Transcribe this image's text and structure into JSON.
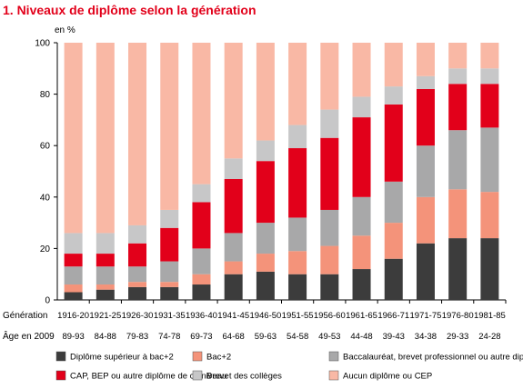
{
  "chart_data": {
    "type": "bar",
    "stacked": true,
    "title": "1. Niveaux de diplôme selon la génération",
    "ylabel": "en %",
    "ylim": [
      0,
      100
    ],
    "yticks": [
      0,
      20,
      40,
      60,
      80,
      100
    ],
    "row_labels": [
      "Génération",
      "Âge en 2009"
    ],
    "categories": [
      "1916-20",
      "1921-25",
      "1926-30",
      "1931-35",
      "1936-40",
      "1941-45",
      "1946-50",
      "1951-55",
      "1956-60",
      "1961-65",
      "1966-71",
      "1971-75",
      "1976-80",
      "1981-85"
    ],
    "ages": [
      "89-93",
      "84-88",
      "79-83",
      "74-78",
      "69-73",
      "64-68",
      "59-63",
      "54-58",
      "49-53",
      "44-48",
      "39-43",
      "34-38",
      "29-33",
      "24-28"
    ],
    "series": [
      {
        "name": "Diplôme supérieur à bac+2",
        "color": "#3c3c3c",
        "values": [
          3,
          4,
          5,
          5,
          6,
          10,
          11,
          10,
          10,
          12,
          16,
          22,
          24,
          24
        ]
      },
      {
        "name": "Bac+2",
        "color": "#f4937a",
        "values": [
          3,
          2,
          2,
          2,
          4,
          5,
          7,
          9,
          11,
          13,
          14,
          18,
          19,
          18
        ]
      },
      {
        "name": "Baccalauréat, brevet professionnel ou autre diplôme de ce niveau",
        "color": "#a8a8a9",
        "values": [
          7,
          7,
          6,
          8,
          10,
          11,
          12,
          13,
          14,
          15,
          16,
          20,
          23,
          25
        ]
      },
      {
        "name": "CAP, BEP ou autre diplôme de ce niveau",
        "color": "#e2001a",
        "values": [
          5,
          5,
          9,
          13,
          18,
          21,
          24,
          27,
          28,
          31,
          30,
          22,
          18,
          17
        ]
      },
      {
        "name": "Brevet des collèges",
        "color": "#c7c7c8",
        "values": [
          8,
          8,
          7,
          7,
          7,
          8,
          8,
          9,
          11,
          8,
          7,
          5,
          6,
          6
        ]
      },
      {
        "name": "Aucun diplôme ou CEP",
        "color": "#f9b8a5",
        "values": [
          74,
          74,
          71,
          65,
          55,
          45,
          38,
          32,
          26,
          21,
          17,
          13,
          10,
          10
        ]
      }
    ],
    "legend_position": "bottom",
    "grid": false
  }
}
